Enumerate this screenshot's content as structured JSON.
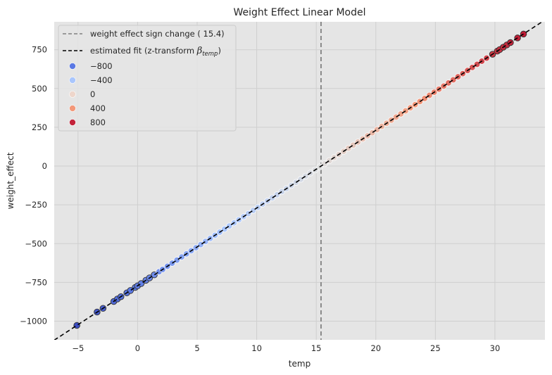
{
  "chart_data": {
    "type": "scatter",
    "title": "Weight Effect Linear Model",
    "xlabel": "temp",
    "ylabel": "weight_effect",
    "xlim": [
      -7,
      34.2
    ],
    "ylim": [
      -1120,
      930
    ],
    "xticks": [
      -5,
      0,
      5,
      10,
      15,
      20,
      25,
      30
    ],
    "xtick_labels": [
      "−5",
      "0",
      "5",
      "10",
      "15",
      "20",
      "25",
      "30"
    ],
    "yticks": [
      -1000,
      -750,
      -500,
      -250,
      0,
      250,
      500,
      750
    ],
    "ytick_labels": [
      "−1000",
      "−750",
      "−500",
      "−250",
      "0",
      "250",
      "500",
      "750"
    ],
    "grid": true,
    "background": "#e5e5e5",
    "grid_color": "#cfcfcf",
    "sign_change": {
      "x": 15.4,
      "label": "weight effect sign change ( 15.4)",
      "color": "#808080",
      "style": "dashed"
    },
    "fit_line": {
      "slope": 50.1,
      "intercept": -771.5,
      "label_main": "estimated fit (z-transform ",
      "label_beta": "β",
      "label_sub": "temp",
      "label_close": ")",
      "color": "#000000",
      "style": "dashed"
    },
    "hue_legend": [
      {
        "label": "−800",
        "color": "#5a78e4"
      },
      {
        "label": "−400",
        "color": "#a9c6fd"
      },
      {
        "label": "0",
        "color": "#eed6cb"
      },
      {
        "label": "400",
        "color": "#f39879"
      },
      {
        "label": "800",
        "color": "#c3233a"
      }
    ],
    "legend_position": "upper-left",
    "points_x": [
      -5.1,
      -3.4,
      -2.9,
      -2.0,
      -1.7,
      -1.4,
      -0.9,
      -0.6,
      -0.2,
      0.0,
      0.3,
      0.7,
      1.0,
      1.4,
      1.8,
      2.1,
      2.5,
      2.9,
      3.3,
      3.7,
      4.1,
      4.5,
      4.9,
      5.3,
      5.7,
      6.1,
      6.5,
      6.9,
      7.3,
      7.7,
      8.1,
      8.5,
      8.9,
      9.3,
      9.7,
      10.1,
      10.5,
      10.9,
      11.3,
      11.7,
      12.1,
      12.5,
      12.9,
      13.3,
      13.7,
      14.1,
      14.5,
      14.9,
      15.3,
      15.7,
      16.1,
      16.5,
      16.9,
      17.3,
      17.7,
      18.1,
      18.5,
      18.9,
      19.3,
      19.7,
      20.1,
      20.5,
      20.9,
      21.3,
      21.7,
      22.1,
      22.5,
      22.9,
      23.3,
      23.7,
      24.1,
      24.5,
      24.9,
      25.3,
      25.7,
      26.1,
      26.5,
      26.9,
      27.3,
      27.7,
      28.1,
      28.5,
      28.9,
      29.3,
      29.8,
      30.2,
      30.4,
      30.7,
      31.0,
      31.3,
      31.9,
      32.4
    ],
    "points_y": [
      -1027,
      -941,
      -917,
      -873,
      -857,
      -842,
      -817,
      -802,
      -782,
      -772,
      -757,
      -736,
      -721,
      -701,
      -681,
      -666,
      -646,
      -626,
      -606,
      -586,
      -566,
      -546,
      -526,
      -506,
      -486,
      -466,
      -446,
      -426,
      -406,
      -386,
      -366,
      -346,
      -326,
      -306,
      -286,
      -266,
      -245,
      -225,
      -205,
      -185,
      -165,
      -145,
      -125,
      -105,
      -85,
      -65,
      -45,
      -25,
      -5,
      15,
      35,
      55,
      75,
      95,
      115,
      135,
      155,
      175,
      195,
      215,
      235,
      256,
      276,
      296,
      316,
      336,
      356,
      376,
      396,
      416,
      436,
      456,
      476,
      496,
      516,
      536,
      556,
      576,
      596,
      616,
      636,
      656,
      676,
      696,
      721,
      741,
      751,
      766,
      781,
      796,
      826,
      851
    ]
  }
}
